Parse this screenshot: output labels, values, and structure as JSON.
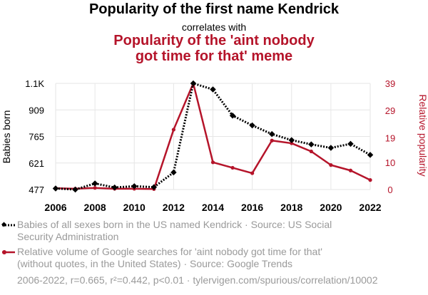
{
  "title": {
    "line1": "Popularity of the first name Kendrick",
    "line2": "correlates with",
    "line3": "Popularity of the 'aint nobody got time for that' meme"
  },
  "colors": {
    "series1": "#000000",
    "series2": "#b5142a",
    "grid": "#e6e6e6",
    "legend_text": "#9a9a9a"
  },
  "chart_data": {
    "type": "line",
    "x": [
      2006,
      2007,
      2008,
      2009,
      2010,
      2011,
      2012,
      2013,
      2014,
      2015,
      2016,
      2017,
      2018,
      2019,
      2020,
      2021,
      2022
    ],
    "x_ticks": [
      "2006",
      "2008",
      "2010",
      "2012",
      "2014",
      "2016",
      "2018",
      "2020",
      "2022"
    ],
    "ylabel_left": "Babies born",
    "ylabel_right": "Relative popularity",
    "y_left_ticks": [
      "477",
      "621",
      "765",
      "909",
      "1.1K"
    ],
    "y_left_tick_values": [
      477,
      621,
      765,
      909,
      1053
    ],
    "y_right_ticks": [
      "0",
      "10",
      "19",
      "29",
      "39"
    ],
    "y_right_tick_values": [
      0,
      10,
      19,
      29,
      39
    ],
    "ylim_left": [
      477,
      1053
    ],
    "ylim_right": [
      0,
      39
    ],
    "grid": true,
    "series": [
      {
        "name": "Babies of all sexes born in the US named Kendrick · Source: US Social Security Administration",
        "axis": "left",
        "style": "dotted",
        "marker": "diamond",
        "values": [
          483,
          477,
          510,
          488,
          495,
          490,
          570,
          1053,
          1020,
          878,
          825,
          778,
          745,
          722,
          703,
          725,
          665
        ]
      },
      {
        "name": "Relative volume of Google searches for 'aint nobody got time for that' (without quotes, in the United States) · Source: Google Trends",
        "axis": "right",
        "style": "solid",
        "marker": "circle",
        "values": [
          0.5,
          0.3,
          0.6,
          0.3,
          0.3,
          0.2,
          22,
          39,
          10,
          8,
          6,
          18,
          17,
          14,
          9,
          7,
          3.5
        ]
      }
    ]
  },
  "legend": {
    "item1": "Babies of all sexes born in the US named Kendrick · Source: US Social Security Administration",
    "item2": "Relative volume of Google searches for 'aint nobody got time for that' (without quotes, in the United States) · Source: Google Trends"
  },
  "footer": "2006-2022, r=0.665, r²=0.442, p<0.01 · tylervigen.com/spurious/correlation/10002"
}
